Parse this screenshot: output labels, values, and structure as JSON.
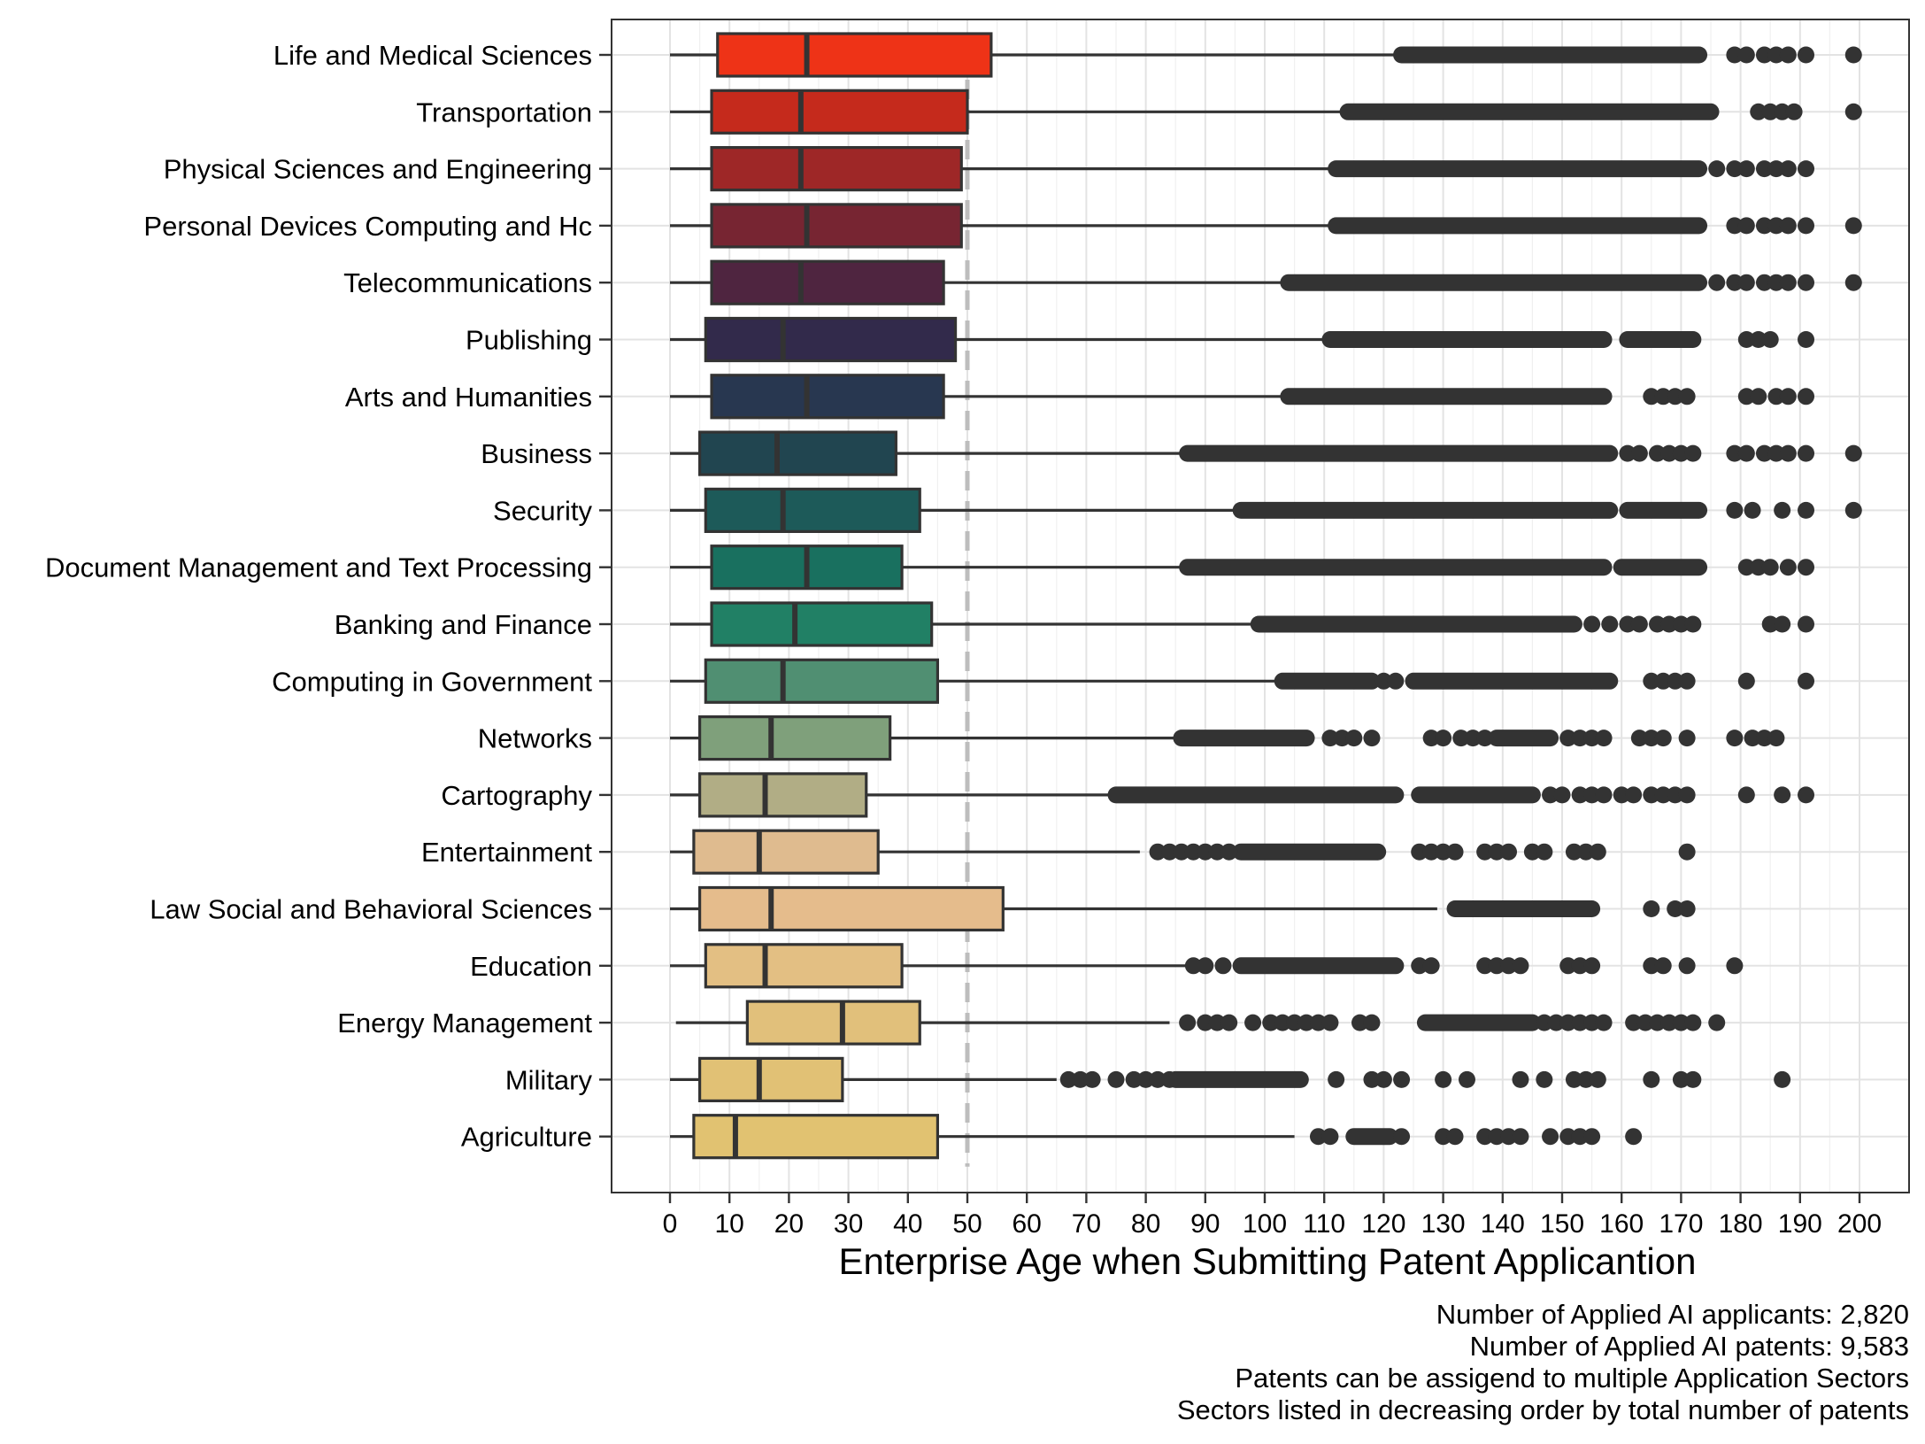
{
  "chart_data": {
    "type": "boxplot",
    "xlabel": "Enterprise Age when Submitting Patent Applicantion",
    "ylabel": "",
    "xlim": [
      -10,
      209
    ],
    "x_ticks": [
      0,
      10,
      20,
      30,
      40,
      50,
      60,
      70,
      80,
      90,
      100,
      110,
      120,
      130,
      140,
      150,
      160,
      170,
      180,
      190,
      200
    ],
    "reference_line": {
      "x": 50,
      "style": "dashed",
      "color": "#bdbdbd"
    },
    "grid": true,
    "legend": "none",
    "categories": [
      {
        "name": "Life and Medical Sciences",
        "whisker_low": 0,
        "q1": 8,
        "median": 23,
        "q3": 54,
        "whisker_high": 123,
        "color": "#ee3317",
        "outlier_ranges": [
          [
            123,
            173
          ]
        ],
        "outliers": [
          179,
          181,
          184,
          186,
          188,
          191,
          199
        ]
      },
      {
        "name": "Transportation",
        "whisker_low": 0,
        "q1": 7,
        "median": 22,
        "q3": 50,
        "whisker_high": 114,
        "color": "#c52a1c",
        "outlier_ranges": [
          [
            114,
            175
          ]
        ],
        "outliers": [
          183,
          185,
          187,
          189,
          199
        ]
      },
      {
        "name": "Physical Sciences and Engineering",
        "whisker_low": 0,
        "q1": 7,
        "median": 22,
        "q3": 49,
        "whisker_high": 112,
        "color": "#9e2727",
        "outlier_ranges": [
          [
            112,
            173
          ]
        ],
        "outliers": [
          176,
          179,
          181,
          184,
          186,
          188,
          191
        ]
      },
      {
        "name": "Personal Devices Computing and Hc",
        "whisker_low": 0,
        "q1": 7,
        "median": 23,
        "q3": 49,
        "whisker_high": 112,
        "color": "#772532",
        "outlier_ranges": [
          [
            112,
            173
          ]
        ],
        "outliers": [
          179,
          181,
          184,
          186,
          188,
          191,
          199
        ]
      },
      {
        "name": "Telecommunications",
        "whisker_low": 0,
        "q1": 7,
        "median": 22,
        "q3": 46,
        "whisker_high": 104,
        "color": "#4f2540",
        "outlier_ranges": [
          [
            104,
            173
          ]
        ],
        "outliers": [
          176,
          179,
          181,
          184,
          186,
          188,
          191,
          199
        ]
      },
      {
        "name": "Publishing",
        "whisker_low": 0,
        "q1": 6,
        "median": 19,
        "q3": 48,
        "whisker_high": 111,
        "color": "#322a4b",
        "outlier_ranges": [
          [
            111,
            157
          ],
          [
            161,
            172
          ]
        ],
        "outliers": [
          181,
          183,
          185,
          191
        ]
      },
      {
        "name": "Arts and Humanities",
        "whisker_low": 0,
        "q1": 7,
        "median": 23,
        "q3": 46,
        "whisker_high": 104,
        "color": "#283750",
        "outlier_ranges": [
          [
            104,
            157
          ]
        ],
        "outliers": [
          165,
          167,
          169,
          171,
          181,
          183,
          186,
          188,
          191
        ]
      },
      {
        "name": "Business",
        "whisker_low": 0,
        "q1": 5,
        "median": 18,
        "q3": 38,
        "whisker_high": 87,
        "color": "#214550",
        "outlier_ranges": [
          [
            87,
            158
          ]
        ],
        "outliers": [
          161,
          163,
          166,
          168,
          170,
          172,
          179,
          181,
          184,
          186,
          188,
          191,
          199
        ]
      },
      {
        "name": "Security",
        "whisker_low": 0,
        "q1": 6,
        "median": 19,
        "q3": 42,
        "whisker_high": 96,
        "color": "#1d5a59",
        "outlier_ranges": [
          [
            96,
            158
          ],
          [
            161,
            173
          ]
        ],
        "outliers": [
          179,
          182,
          187,
          191,
          199
        ]
      },
      {
        "name": "Document Management and Text Processing",
        "whisker_low": 0,
        "q1": 7,
        "median": 23,
        "q3": 39,
        "whisker_high": 87,
        "color": "#19705f",
        "outlier_ranges": [
          [
            87,
            157
          ],
          [
            160,
            173
          ]
        ],
        "outliers": [
          181,
          183,
          185,
          188,
          191
        ]
      },
      {
        "name": "Banking and Finance",
        "whisker_low": 0,
        "q1": 7,
        "median": 21,
        "q3": 44,
        "whisker_high": 99,
        "color": "#218065",
        "outlier_ranges": [
          [
            99,
            152
          ]
        ],
        "outliers": [
          155,
          158,
          161,
          163,
          166,
          168,
          170,
          172,
          185,
          187,
          191
        ]
      },
      {
        "name": "Computing in Government",
        "whisker_low": 0,
        "q1": 6,
        "median": 19,
        "q3": 45,
        "whisker_high": 103,
        "color": "#508f72",
        "outlier_ranges": [
          [
            103,
            118
          ],
          [
            125,
            158
          ]
        ],
        "outliers": [
          120,
          122,
          165,
          167,
          169,
          171,
          181,
          191
        ]
      },
      {
        "name": "Networks",
        "whisker_low": 0,
        "q1": 5,
        "median": 17,
        "q3": 37,
        "whisker_high": 86,
        "color": "#7fa07b",
        "outlier_ranges": [
          [
            86,
            107
          ],
          [
            139,
            148
          ]
        ],
        "outliers": [
          111,
          113,
          115,
          118,
          128,
          130,
          133,
          135,
          137,
          151,
          153,
          155,
          157,
          163,
          165,
          167,
          171,
          179,
          182,
          184,
          186
        ]
      },
      {
        "name": "Cartography",
        "whisker_low": 0,
        "q1": 5,
        "median": 16,
        "q3": 33,
        "whisker_high": 75,
        "color": "#b1ad85",
        "outlier_ranges": [
          [
            75,
            122
          ],
          [
            126,
            145
          ]
        ],
        "outliers": [
          148,
          150,
          153,
          155,
          157,
          160,
          162,
          165,
          167,
          169,
          171,
          181,
          187,
          191
        ]
      },
      {
        "name": "Entertainment",
        "whisker_low": 0,
        "q1": 4,
        "median": 15,
        "q3": 35,
        "whisker_high": 79,
        "color": "#dfbb8f",
        "outlier_ranges": [
          [
            96,
            119
          ]
        ],
        "outliers": [
          82,
          84,
          86,
          88,
          90,
          92,
          94,
          126,
          128,
          130,
          132,
          137,
          139,
          141,
          145,
          147,
          152,
          154,
          156,
          171
        ]
      },
      {
        "name": "Law Social and Behavioral Sciences",
        "whisker_low": 0,
        "q1": 5,
        "median": 17,
        "q3": 56,
        "whisker_high": 129,
        "color": "#e5bc8c",
        "outlier_ranges": [
          [
            132,
            155
          ]
        ],
        "outliers": [
          165,
          169,
          171
        ]
      },
      {
        "name": "Education",
        "whisker_low": 0,
        "q1": 6,
        "median": 16,
        "q3": 39,
        "whisker_high": 88,
        "color": "#e3bf83",
        "outlier_ranges": [
          [
            96,
            122
          ]
        ],
        "outliers": [
          88,
          90,
          93,
          126,
          128,
          137,
          139,
          141,
          143,
          151,
          153,
          155,
          165,
          167,
          171,
          179
        ]
      },
      {
        "name": "Energy Management",
        "whisker_low": 1,
        "q1": 13,
        "median": 29,
        "q3": 42,
        "whisker_high": 84,
        "color": "#e1c07b",
        "outlier_ranges": [
          [
            127,
            145
          ]
        ],
        "outliers": [
          87,
          90,
          92,
          94,
          98,
          101,
          103,
          105,
          107,
          109,
          111,
          116,
          118,
          147,
          149,
          151,
          153,
          155,
          157,
          162,
          164,
          166,
          168,
          170,
          172,
          176
        ]
      },
      {
        "name": "Military",
        "whisker_low": 0,
        "q1": 5,
        "median": 15,
        "q3": 29,
        "whisker_high": 65,
        "color": "#e1c175",
        "outlier_ranges": [
          [
            85,
            106
          ]
        ],
        "outliers": [
          67,
          69,
          71,
          75,
          78,
          80,
          82,
          84,
          112,
          118,
          120,
          123,
          130,
          134,
          143,
          147,
          152,
          154,
          156,
          165,
          170,
          172,
          187
        ]
      },
      {
        "name": "Agriculture",
        "whisker_low": 0,
        "q1": 4,
        "median": 11,
        "q3": 45,
        "whisker_high": 105,
        "color": "#e1c271",
        "outlier_ranges": [
          [
            115,
            121
          ]
        ],
        "outliers": [
          109,
          111,
          123,
          130,
          132,
          137,
          139,
          141,
          143,
          148,
          151,
          153,
          155,
          162
        ]
      }
    ]
  },
  "caption": {
    "line1": "Number of Applied AI applicants: 2,820",
    "line2": "Number of Applied AI patents: 9,583",
    "line3": "Patents can be assigend to multiple Application Sectors",
    "line4": "Sectors listed in decreasing order by total number of patents"
  }
}
